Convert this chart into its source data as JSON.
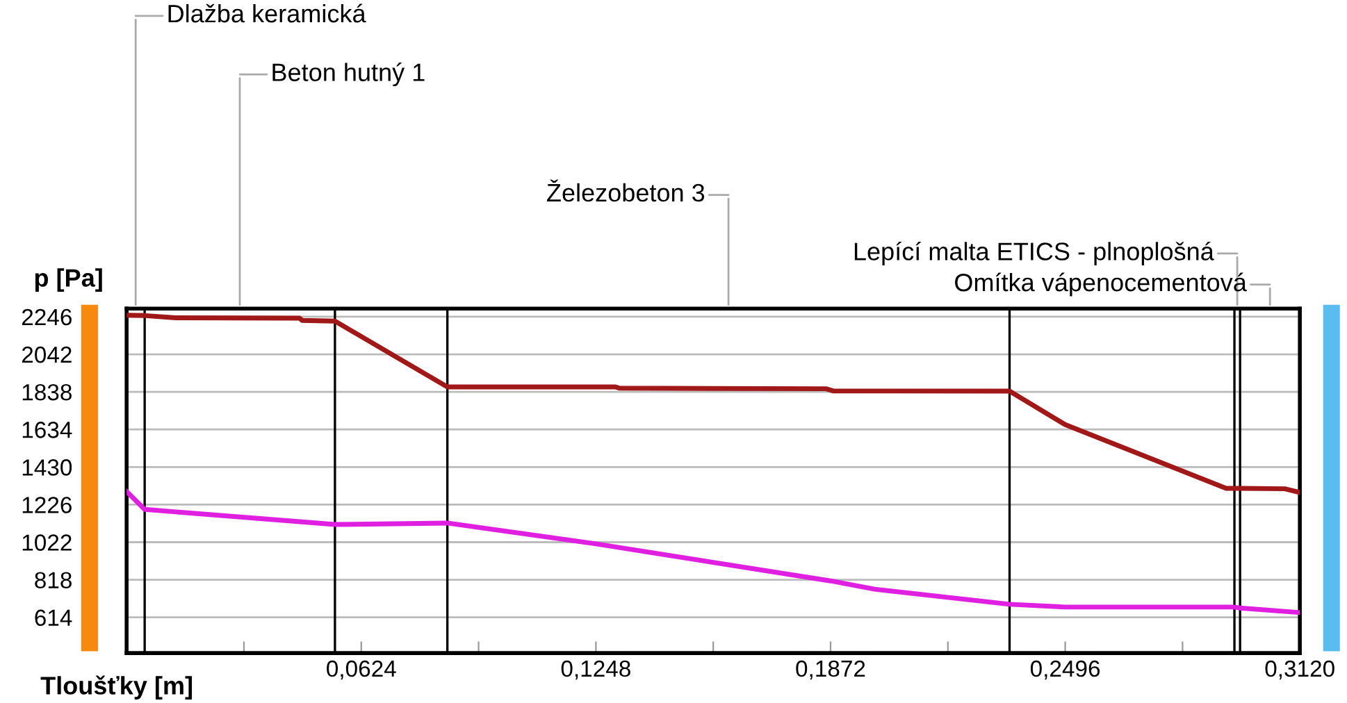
{
  "chart_data": {
    "type": "line",
    "xlabel": "Tloušťky [m]",
    "ylabel": "p [Pa]",
    "series": [
      {
        "color": "#a01818",
        "x": [
          0,
          0.005,
          0.013,
          0.046,
          0.0467,
          0.0554,
          0.0853,
          0.13,
          0.131,
          0.186,
          0.188,
          0.2348,
          0.2496,
          0.2924,
          0.2961,
          0.308,
          0.312
        ],
        "values": [
          2254,
          2252,
          2240,
          2238,
          2226,
          2222,
          1865,
          1865,
          1858,
          1855,
          1843,
          1842,
          1660,
          1314,
          1314,
          1312,
          1292
        ]
      },
      {
        "color": "#e020e0",
        "x": [
          0,
          0.0048,
          0.0554,
          0.0853,
          0.1248,
          0.1872,
          0.1989,
          0.2348,
          0.2496,
          0.2946,
          0.2961,
          0.312
        ],
        "values": [
          1297,
          1200,
          1118,
          1126,
          1013,
          812,
          767,
          685,
          670,
          670,
          665,
          640
        ]
      }
    ],
    "xlim": [
      0,
      0.312
    ],
    "ylim": [
      420,
      2290
    ],
    "xticks": [
      {
        "value": 0.0312,
        "label": null
      },
      {
        "value": 0.0624,
        "label": "0,0624"
      },
      {
        "value": 0.0936,
        "label": null
      },
      {
        "value": 0.1248,
        "label": "0,1248"
      },
      {
        "value": 0.156,
        "label": null
      },
      {
        "value": 0.1872,
        "label": "0,1872"
      },
      {
        "value": 0.2184,
        "label": null
      },
      {
        "value": 0.2496,
        "label": "0,2496"
      },
      {
        "value": 0.2808,
        "label": null
      },
      {
        "value": 0.312,
        "label": "0,3120"
      }
    ],
    "yticks": [
      614,
      818,
      1022,
      1226,
      1430,
      1634,
      1838,
      2042,
      2246
    ],
    "grid": "y",
    "ref_lines": [
      {
        "axis": "x",
        "value": 0.0048,
        "color": "#000000"
      },
      {
        "axis": "x",
        "value": 0.0554,
        "color": "#000000"
      },
      {
        "axis": "x",
        "value": 0.0853,
        "color": "#000000"
      },
      {
        "axis": "x",
        "value": 0.2348,
        "color": "#000000"
      },
      {
        "axis": "x",
        "value": 0.2946,
        "color": "#000000"
      },
      {
        "axis": "x",
        "value": 0.2961,
        "color": "#000000"
      }
    ],
    "annotations": [
      "Dlažba keramická",
      "Beton hutný 1",
      "Železobeton 3",
      "Lepící malta ETICS - plnoplošná",
      "Omítka vápenocementová"
    ]
  }
}
